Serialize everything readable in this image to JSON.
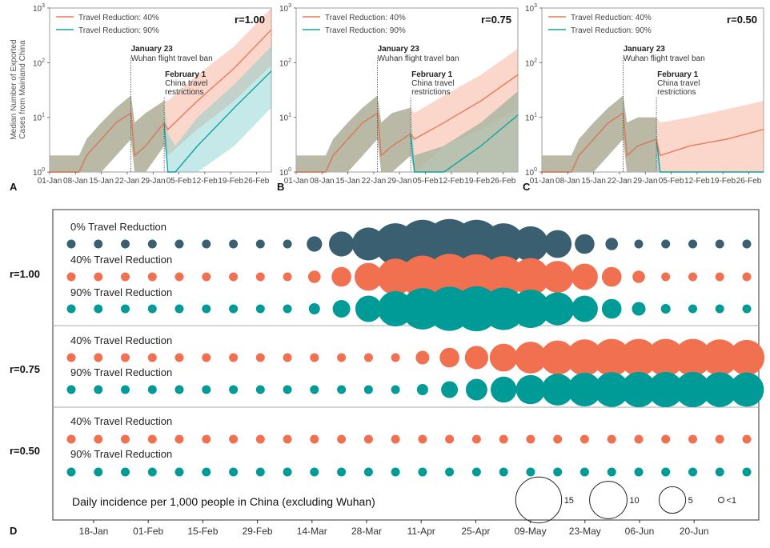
{
  "chart_data": [
    {
      "type": "line",
      "panel": "A",
      "r_label": "r=1.00",
      "ylabel": "Median Number of Exported\nCases from Mainland China",
      "yscale": "log",
      "ylim": [
        1,
        1000
      ],
      "yticks": [
        "10^0",
        "10^1",
        "10^2",
        "10^3"
      ],
      "x_ticks": [
        "01-Jan",
        "08-Jan",
        "15-Jan",
        "22-Jan",
        "29-Jan",
        "05-Feb",
        "12-Feb",
        "19-Feb",
        "26-Feb"
      ],
      "xlim_days": [
        0,
        60
      ],
      "events": [
        {
          "day": 22,
          "title": "January 23",
          "text": "Wuhan flight travel ban"
        },
        {
          "day": 31,
          "title": "February 1",
          "text": "China travel restrictions"
        }
      ],
      "legend": [
        "Travel Reduction: 40%",
        "Travel Reduction: 90%"
      ],
      "series": [
        {
          "name": "Travel Reduction: 40%",
          "color": "#f08060",
          "x": [
            0,
            8,
            10,
            14,
            18,
            22,
            23,
            26,
            31,
            32,
            40,
            50,
            60
          ],
          "y": [
            1,
            1,
            2,
            4,
            8,
            12,
            2,
            3,
            8,
            6,
            20,
            80,
            400
          ],
          "lo": [
            1,
            1,
            1,
            1,
            2,
            4,
            1,
            1,
            3,
            2,
            6,
            20,
            90
          ],
          "hi": [
            2,
            2,
            4,
            8,
            15,
            25,
            8,
            12,
            20,
            20,
            60,
            200,
            1000
          ]
        },
        {
          "name": "Travel Reduction: 90%",
          "color": "#1aa3a0",
          "x": [
            0,
            8,
            10,
            14,
            18,
            22,
            23,
            26,
            31,
            32,
            34,
            40,
            50,
            60
          ],
          "y": [
            1,
            1,
            2,
            4,
            8,
            12,
            2,
            3,
            8,
            1,
            1,
            3,
            15,
            70
          ],
          "lo": [
            1,
            1,
            1,
            1,
            2,
            4,
            1,
            1,
            3,
            1,
            1,
            1,
            3,
            15
          ],
          "hi": [
            2,
            2,
            4,
            8,
            15,
            25,
            8,
            12,
            20,
            5,
            3,
            10,
            40,
            200
          ]
        }
      ]
    },
    {
      "type": "line",
      "panel": "B",
      "r_label": "r=0.75",
      "yscale": "log",
      "ylim": [
        1,
        1000
      ],
      "yticks": [
        "10^0",
        "10^1",
        "10^2",
        "10^3"
      ],
      "x_ticks": [
        "01-Jan",
        "08-Jan",
        "15-Jan",
        "22-Jan",
        "29-Jan",
        "05-Feb",
        "12-Feb",
        "19-Feb",
        "26-Feb"
      ],
      "xlim_days": [
        0,
        60
      ],
      "events": [
        {
          "day": 22,
          "title": "January 23",
          "text": "Wuhan flight travel ban"
        },
        {
          "day": 31,
          "title": "February 1",
          "text": "China travel restrictions"
        }
      ],
      "legend": [
        "Travel Reduction: 40%",
        "Travel Reduction: 90%"
      ],
      "series": [
        {
          "name": "Travel Reduction: 40%",
          "color": "#f08060",
          "x": [
            0,
            8,
            10,
            14,
            18,
            22,
            23,
            26,
            31,
            32,
            40,
            50,
            60
          ],
          "y": [
            1,
            1,
            2,
            4,
            8,
            12,
            2,
            3,
            5,
            4,
            8,
            20,
            60
          ],
          "lo": [
            1,
            1,
            1,
            1,
            2,
            4,
            1,
            1,
            2,
            1,
            3,
            6,
            15
          ],
          "hi": [
            2,
            2,
            4,
            8,
            15,
            25,
            8,
            12,
            15,
            12,
            25,
            60,
            180
          ]
        },
        {
          "name": "Travel Reduction: 90%",
          "color": "#1aa3a0",
          "x": [
            0,
            8,
            10,
            14,
            18,
            22,
            23,
            26,
            31,
            32,
            40,
            50,
            60
          ],
          "y": [
            1,
            1,
            2,
            4,
            8,
            12,
            2,
            3,
            5,
            1,
            1,
            3,
            11
          ],
          "lo": [
            1,
            1,
            1,
            1,
            2,
            4,
            1,
            1,
            2,
            1,
            1,
            1,
            1
          ],
          "hi": [
            2,
            2,
            4,
            8,
            15,
            25,
            8,
            12,
            15,
            2,
            3,
            8,
            30
          ]
        }
      ]
    },
    {
      "type": "line",
      "panel": "C",
      "r_label": "r=0.50",
      "yscale": "log",
      "ylim": [
        1,
        1000
      ],
      "yticks": [
        "10^0",
        "10^1",
        "10^2",
        "10^3"
      ],
      "x_ticks": [
        "01-Jan",
        "08-Jan",
        "15-Jan",
        "22-Jan",
        "29-Jan",
        "05-Feb",
        "12-Feb",
        "19-Feb",
        "26-Feb"
      ],
      "xlim_days": [
        0,
        60
      ],
      "events": [
        {
          "day": 22,
          "title": "January 23",
          "text": "Wuhan flight travel ban"
        },
        {
          "day": 31,
          "title": "February 1",
          "text": "China travel restrictions"
        }
      ],
      "legend": [
        "Travel Reduction: 40%",
        "Travel Reduction: 90%"
      ],
      "series": [
        {
          "name": "Travel Reduction: 40%",
          "color": "#f08060",
          "x": [
            0,
            8,
            10,
            14,
            18,
            22,
            23,
            26,
            31,
            32,
            40,
            50,
            60
          ],
          "y": [
            1,
            1,
            2,
            4,
            8,
            12,
            2,
            3,
            4,
            2,
            3,
            4,
            6
          ],
          "lo": [
            1,
            1,
            1,
            1,
            2,
            4,
            1,
            1,
            1,
            1,
            1,
            1,
            1
          ],
          "hi": [
            2,
            2,
            4,
            8,
            15,
            25,
            8,
            10,
            10,
            8,
            10,
            14,
            20
          ]
        },
        {
          "name": "Travel Reduction: 90%",
          "color": "#1aa3a0",
          "x": [
            0,
            8,
            10,
            14,
            18,
            22,
            23,
            26,
            31,
            32,
            60
          ],
          "y": [
            1,
            1,
            2,
            4,
            8,
            12,
            2,
            3,
            4,
            1,
            1
          ],
          "lo": [
            1,
            1,
            1,
            1,
            2,
            4,
            1,
            1,
            1,
            1,
            1
          ],
          "hi": [
            2,
            2,
            4,
            8,
            15,
            25,
            8,
            10,
            10,
            1,
            1
          ]
        }
      ]
    },
    {
      "type": "scatter",
      "panel": "D",
      "title": "Daily incidence per 1,000 people in China (excluding Wuhan)",
      "x_tick_labels": [
        "18-Jan",
        "01-Feb",
        "15-Feb",
        "29-Feb",
        "14-Mar",
        "28-Mar",
        "11-Apr",
        "25-Apr",
        "09-May",
        "23-May",
        "06-Jun",
        "20-Jun"
      ],
      "size_legend": [
        {
          "value": 15,
          "label": "15"
        },
        {
          "value": 10,
          "label": "10"
        },
        {
          "value": 5,
          "label": "5"
        },
        {
          "value": 0.5,
          "label": "<1"
        }
      ],
      "colors": {
        "0": "#3a5f70",
        "40": "#f07050",
        "90": "#009b96"
      },
      "groups": [
        {
          "r_label": "r=1.00",
          "rows": [
            {
              "label": "0% Travel Reduction",
              "color_key": "0",
              "values": [
                0.5,
                0.5,
                0.5,
                0.5,
                0.5,
                0.5,
                0.5,
                0.5,
                0.5,
                1.5,
                4,
                7,
                11,
                15,
                16,
                15,
                11,
                8,
                5,
                2.5,
                1,
                0.5,
                0.5,
                0.5,
                0.5,
                0.5
              ]
            },
            {
              "label": "40% Travel Reduction",
              "color_key": "40",
              "values": [
                0.5,
                0.5,
                0.5,
                0.5,
                0.5,
                0.5,
                0.5,
                0.5,
                0.5,
                1,
                2.5,
                5,
                8.5,
                11.5,
                13.5,
                13,
                11,
                9,
                6.5,
                4.5,
                2.5,
                1,
                0.5,
                0.5,
                0.5,
                0.5
              ]
            },
            {
              "label": "90% Travel Reduction",
              "color_key": "90",
              "values": [
                0.5,
                0.5,
                0.5,
                0.5,
                0.5,
                0.5,
                0.5,
                0.5,
                0.5,
                0.8,
                2,
                4.5,
                8,
                11,
                12.5,
                13,
                11.5,
                9.5,
                7,
                4.5,
                2.5,
                1.2,
                0.6,
                0.5,
                0.5,
                0.5
              ]
            }
          ]
        },
        {
          "r_label": "r=0.75",
          "rows": [
            {
              "label": "40% Travel Reduction",
              "color_key": "40",
              "values": [
                0.5,
                0.5,
                0.5,
                0.5,
                0.5,
                0.5,
                0.5,
                0.5,
                0.5,
                0.5,
                0.5,
                0.5,
                0.5,
                1.2,
                2.5,
                3.5,
                5,
                6.5,
                7.5,
                8.5,
                9,
                9,
                9,
                9,
                8.5,
                8
              ]
            },
            {
              "label": "90% Travel Reduction",
              "color_key": "90",
              "values": [
                0.5,
                0.5,
                0.5,
                0.5,
                0.5,
                0.5,
                0.5,
                0.5,
                0.5,
                0.5,
                0.5,
                0.5,
                0.5,
                0.8,
                1.8,
                3,
                4.3,
                5.5,
                6.5,
                7.3,
                7.8,
                8,
                8,
                8,
                7.8,
                7.5
              ]
            }
          ]
        },
        {
          "r_label": "r=0.50",
          "rows": [
            {
              "label": "40% Travel Reduction",
              "color_key": "40",
              "values": [
                0.5,
                0.5,
                0.5,
                0.5,
                0.5,
                0.5,
                0.5,
                0.5,
                0.5,
                0.5,
                0.5,
                0.5,
                0.5,
                0.5,
                0.5,
                0.5,
                0.5,
                0.5,
                0.5,
                0.5,
                0.5,
                0.5,
                0.5,
                0.5,
                0.5,
                0.5
              ]
            },
            {
              "label": "90% Travel Reduction",
              "color_key": "90",
              "values": [
                0.5,
                0.5,
                0.5,
                0.5,
                0.5,
                0.5,
                0.5,
                0.5,
                0.5,
                0.5,
                0.5,
                0.5,
                0.5,
                0.5,
                0.5,
                0.5,
                0.5,
                0.5,
                0.5,
                0.5,
                0.5,
                0.5,
                0.5,
                0.5,
                0.5,
                0.5
              ]
            }
          ]
        }
      ]
    }
  ]
}
